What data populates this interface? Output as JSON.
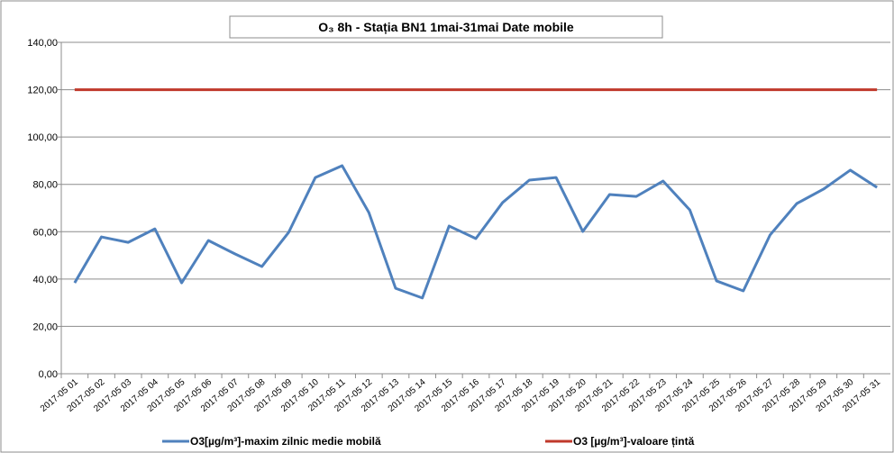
{
  "chart_data": {
    "type": "line",
    "title": "O₃ 8h - Stația BN1 1mai-31mai  Date mobile",
    "categories": [
      "2017-05 01",
      "2017-05 02",
      "2017-05 03",
      "2017-05 04",
      "2017-05 05",
      "2017-05 06",
      "2017-05 07",
      "2017-05 08",
      "2017-05 09",
      "2017-05 10",
      "2017-05 11",
      "2017-05 12",
      "2017-05 13",
      "2017-05 14",
      "2017-05 15",
      "2017-05 16",
      "2017-05 17",
      "2017-05 18",
      "2017-05 19",
      "2017-05 20",
      "2017-05 21",
      "2017-05 22",
      "2017-05 23",
      "2017-05 24",
      "2017-05 25",
      "2017-05 26",
      "2017-05 27",
      "2017-05 28",
      "2017-05 29",
      "2017-05 30",
      "2017-05 31"
    ],
    "series": [
      {
        "name": "O3[µg/m³]-maxim zilnic medie mobilă",
        "color": "#4f81bd",
        "values": [
          38.4,
          57.8,
          55.5,
          61.2,
          38.4,
          56.3,
          50.6,
          45.3,
          59.7,
          82.9,
          87.9,
          68.1,
          36.1,
          32.0,
          62.4,
          57.1,
          72.3,
          81.8,
          82.9,
          60.1,
          75.7,
          74.9,
          81.4,
          69.2,
          39.2,
          35.0,
          58.6,
          71.9,
          78.0,
          86.0,
          78.7
        ]
      },
      {
        "name": "O3 [µg/m³]-valoare țintă",
        "color": "#c0392b",
        "values": [
          120,
          120,
          120,
          120,
          120,
          120,
          120,
          120,
          120,
          120,
          120,
          120,
          120,
          120,
          120,
          120,
          120,
          120,
          120,
          120,
          120,
          120,
          120,
          120,
          120,
          120,
          120,
          120,
          120,
          120,
          120
        ]
      }
    ],
    "ylim": [
      0,
      140
    ],
    "yticks": [
      {
        "value": 0,
        "label": "0,00"
      },
      {
        "value": 20,
        "label": "20,00"
      },
      {
        "value": 40,
        "label": "40,00"
      },
      {
        "value": 60,
        "label": "60,00"
      },
      {
        "value": 80,
        "label": "80,00"
      },
      {
        "value": 100,
        "label": "100,00"
      },
      {
        "value": 120,
        "label": "120,00"
      },
      {
        "value": 140,
        "label": "140,00"
      }
    ],
    "grid": true,
    "legend": "bottom"
  }
}
